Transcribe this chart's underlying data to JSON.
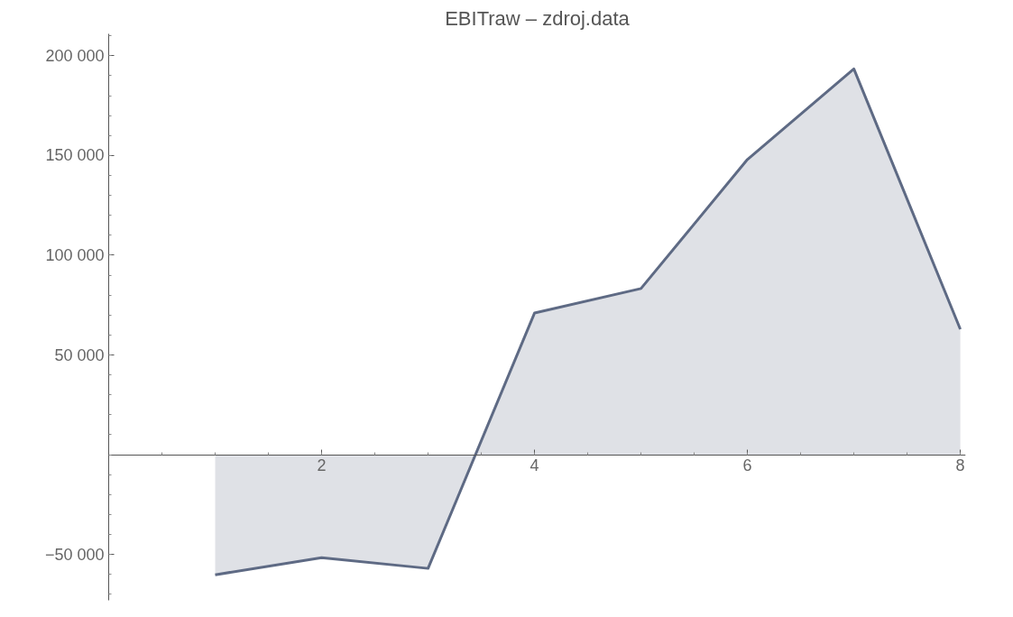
{
  "chart_data": {
    "type": "area",
    "title": "EBITraw – zdroj.data",
    "x": [
      1,
      2,
      3,
      4,
      5,
      6,
      7,
      8
    ],
    "series": [
      {
        "color": "#5e6a84",
        "values": [
          -60200,
          -51600,
          -57000,
          71000,
          83300,
          148000,
          193400,
          62900
        ]
      }
    ],
    "xlim": [
      0,
      8.05
    ],
    "ylim": [
      -73000,
      211000
    ],
    "xticks": [
      2,
      4,
      6,
      8
    ],
    "yticks": [
      {
        "value": -50000,
        "label": "−50 000"
      },
      {
        "value": 50000,
        "label": "50 000"
      },
      {
        "value": 100000,
        "label": "100 000"
      },
      {
        "value": 150000,
        "label": "150 000"
      },
      {
        "value": 200000,
        "label": "200 000"
      }
    ],
    "grid": false
  }
}
